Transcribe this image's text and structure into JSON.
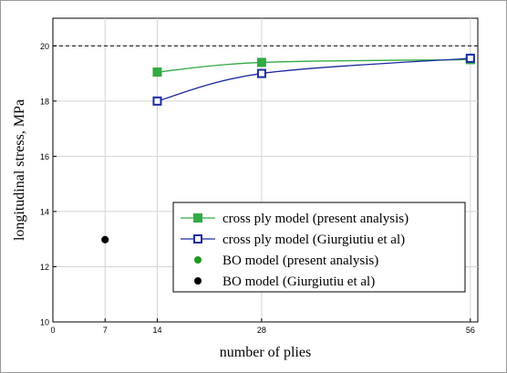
{
  "chart_data": {
    "type": "line",
    "xlabel": "number of plies",
    "ylabel": "longitudinal stress, MPa",
    "xlim": [
      0,
      57
    ],
    "ylim": [
      10,
      21
    ],
    "x_ticks": [
      0,
      7,
      14,
      28,
      56
    ],
    "y_ticks": [
      10,
      12,
      14,
      16,
      18,
      20
    ],
    "grid": true,
    "reference_line": {
      "y": 20,
      "style": "dashed"
    },
    "legend_position": "bottom-right",
    "series": [
      {
        "name": "cross ply model (present analysis)",
        "marker": "filled-square",
        "color": "#33aa44",
        "x": [
          14,
          28,
          56
        ],
        "y": [
          19.05,
          19.4,
          19.5
        ]
      },
      {
        "name": "cross ply model (Giurgiutiu et al)",
        "marker": "open-square",
        "color": "#1a2aa0",
        "x": [
          14,
          28,
          56
        ],
        "y": [
          18.0,
          19.0,
          19.55
        ]
      },
      {
        "name": "BO model (present analysis)",
        "marker": "filled-circle",
        "color": "#1e9a1e",
        "x": [
          7
        ],
        "y": [
          12.98
        ]
      },
      {
        "name": "BO model (Giurgiutiu et al)",
        "marker": "filled-circle",
        "color": "#000000",
        "x": [
          7
        ],
        "y": [
          12.98
        ]
      }
    ]
  }
}
